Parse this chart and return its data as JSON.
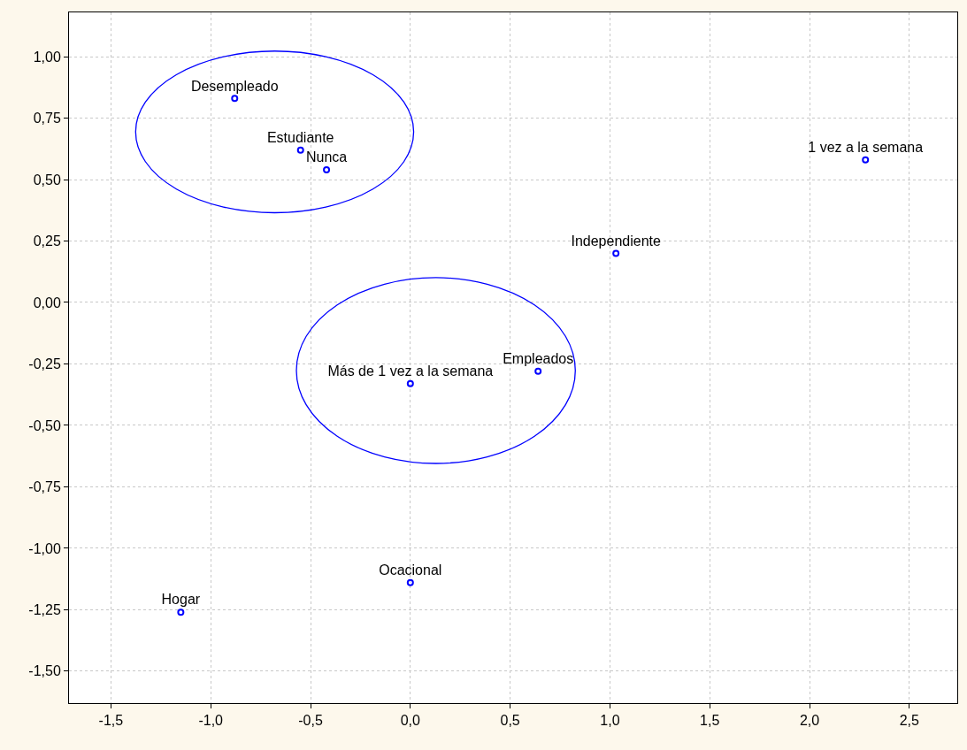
{
  "chart_data": {
    "type": "scatter",
    "x": [
      -0.88,
      -0.55,
      -0.42,
      2.28,
      1.03,
      0.64,
      0.0,
      0.0,
      -1.15
    ],
    "values": [
      0.83,
      0.62,
      0.54,
      0.58,
      0.2,
      -0.28,
      -0.33,
      -1.14,
      -1.26
    ],
    "value_labels": [
      "Desempleado",
      "Estudiante",
      "Nunca",
      "1 vez a la semana",
      "Independiente",
      "Empleados",
      "Más de 1 vez a la semana",
      "Ocacional",
      "Hogar"
    ],
    "color": "#0000ff",
    "marker": "circle",
    "grid": true,
    "xlim": [
      -1.71,
      2.74
    ],
    "ylim": [
      -1.63,
      1.18
    ],
    "xticks": [
      {
        "value": -1.5,
        "label": "-1,5"
      },
      {
        "value": -1,
        "label": "-1,0"
      },
      {
        "value": -0.5,
        "label": "-0,5"
      },
      {
        "value": 0,
        "label": "0,0"
      },
      {
        "value": 0.5,
        "label": "0,5"
      },
      {
        "value": 1,
        "label": "1,0"
      },
      {
        "value": 1.5,
        "label": "1,5"
      },
      {
        "value": 2,
        "label": "2,0"
      },
      {
        "value": 2.5,
        "label": "2,5"
      }
    ],
    "yticks": [
      {
        "value": -1.5,
        "label": "-1,50"
      },
      {
        "value": -1.25,
        "label": "-1,25"
      },
      {
        "value": -1,
        "label": "-1,00"
      },
      {
        "value": -0.75,
        "label": "-0,75"
      },
      {
        "value": -0.5,
        "label": "-0,50"
      },
      {
        "value": -0.25,
        "label": "-0,25"
      },
      {
        "value": 0,
        "label": "0,00"
      },
      {
        "value": 0.25,
        "label": "0,25"
      },
      {
        "value": 0.5,
        "label": "0,50"
      },
      {
        "value": 0.75,
        "label": "0,75"
      },
      {
        "value": 1,
        "label": "1,00"
      }
    ]
  }
}
